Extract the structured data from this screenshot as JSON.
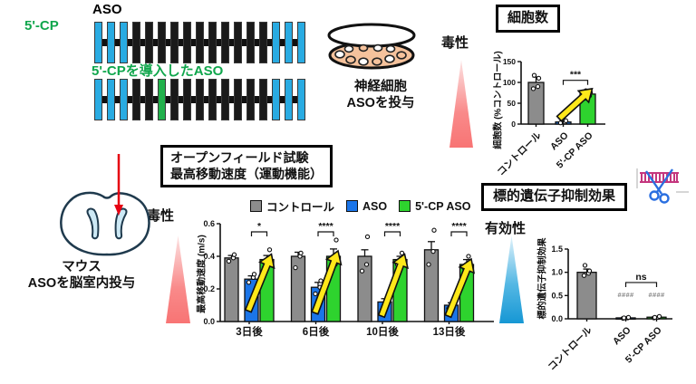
{
  "panels": {
    "structure": {
      "cp_label": "5'-CP",
      "row1_label": "ASO",
      "row2_label": "5'-CPを導入したASO",
      "label_color": "#10a64c",
      "palette": {
        "cyan": "#29abe2",
        "black": "#1a1a1a",
        "green": "#22b14c"
      },
      "row1": [
        "cyan",
        "cyan",
        "cyan",
        "black",
        "black",
        "black",
        "black",
        "black",
        "black",
        "black",
        "black",
        "black",
        "black",
        "black",
        "cyan",
        "cyan",
        "cyan"
      ],
      "row2": [
        "cyan",
        "cyan",
        "cyan",
        "black",
        "black",
        "green",
        "black",
        "black",
        "black",
        "black",
        "black",
        "black",
        "black",
        "black",
        "cyan",
        "cyan",
        "cyan"
      ]
    },
    "cell_assay": {
      "caption_line1": "神経細胞",
      "caption_line2": "ASOを投与",
      "toxicity_label": "毒性"
    },
    "mouse_assay": {
      "caption_line1": "マウス",
      "caption_line2": "ASOを脳室内投与",
      "toxicity_label": "毒性"
    },
    "suppression": {
      "efficacy_label": "有効性"
    }
  },
  "chart_data": [
    {
      "id": "cell_count",
      "type": "bar",
      "title": "細胞数",
      "ylabel": "細胞数 (%コントロール)",
      "ylim": [
        0,
        150
      ],
      "yticks": [
        "0",
        "50",
        "100",
        "150"
      ],
      "categories": [
        "コントロール",
        "ASO",
        "5'-CP ASO"
      ],
      "values": [
        100,
        5,
        72
      ],
      "errors": [
        13,
        2,
        6
      ],
      "dots": [
        [
          85,
          90,
          110,
          117
        ],
        [
          3,
          5,
          8
        ],
        [
          62,
          68,
          76,
          80
        ]
      ],
      "bar_colors": [
        "#8c8c8c",
        "#1b75e8",
        "#2ed32e"
      ],
      "significance": [
        {
          "bars": [
            1,
            2
          ],
          "label": "***",
          "y": 105
        }
      ],
      "arrows": [
        {
          "from": 1,
          "to": 2
        }
      ],
      "grid": false,
      "legend_position": "none"
    },
    {
      "id": "open_field",
      "type": "grouped_bar",
      "title_line1": "オープンフィールド試験",
      "title_line2": "最高移動速度（運動機能）",
      "ylabel": "最高移動速度 (m/s)",
      "ylim": [
        0,
        0.6
      ],
      "yticks": [
        "0.0",
        "0.2",
        "0.4",
        "0.6"
      ],
      "categories": [
        "3日後",
        "6日後",
        "10日後",
        "13日後"
      ],
      "series": [
        {
          "name": "コントロール",
          "color": "#8c8c8c",
          "values": [
            0.39,
            0.4,
            0.4,
            0.44
          ],
          "errors": [
            0.015,
            0.025,
            0.04,
            0.05
          ],
          "dots": [
            [
              0.37,
              0.39,
              0.41
            ],
            [
              0.33,
              0.4,
              0.42
            ],
            [
              0.31,
              0.35,
              0.52
            ],
            [
              0.35,
              0.43,
              0.56
            ]
          ]
        },
        {
          "name": "ASO",
          "color": "#1b75e8",
          "values": [
            0.26,
            0.21,
            0.12,
            0.1
          ],
          "errors": [
            0.02,
            0.03,
            0.02,
            0.015
          ],
          "dots": [
            [
              0.24,
              0.27,
              0.29
            ],
            [
              0.17,
              0.21,
              0.25
            ],
            [
              0.07,
              0.12,
              0.14
            ],
            [
              0.08,
              0.1,
              0.12
            ]
          ]
        },
        {
          "name": "5'-CP ASO",
          "color": "#2ed32e",
          "values": [
            0.38,
            0.4,
            0.38,
            0.35
          ],
          "errors": [
            0.025,
            0.045,
            0.02,
            0.03
          ],
          "dots": [
            [
              0.33,
              0.36,
              0.44
            ],
            [
              0.31,
              0.35,
              0.5
            ],
            [
              0.35,
              0.42
            ],
            [
              0.33,
              0.4
            ]
          ]
        }
      ],
      "significance": [
        {
          "group": 0,
          "series": [
            1,
            2
          ],
          "label": "*",
          "y": 0.55
        },
        {
          "group": 1,
          "series": [
            1,
            2
          ],
          "label": "****",
          "y": 0.55
        },
        {
          "group": 2,
          "series": [
            1,
            2
          ],
          "label": "****",
          "y": 0.55
        },
        {
          "group": 3,
          "series": [
            1,
            2
          ],
          "label": "****",
          "y": 0.55
        }
      ],
      "arrows": [
        {
          "group": 0,
          "from": 1,
          "to": 2
        },
        {
          "group": 1,
          "from": 1,
          "to": 2
        },
        {
          "group": 2,
          "from": 1,
          "to": 2
        },
        {
          "group": 3,
          "from": 1,
          "to": 2
        }
      ],
      "grid": false,
      "legend_position": "top"
    },
    {
      "id": "suppression",
      "type": "bar",
      "title": "標的遺伝子抑制効果",
      "ylabel": "標的遺伝子抑制効果",
      "ylim": [
        0,
        1.5
      ],
      "yticks": [
        "0.0",
        "0.5",
        "1.0",
        "1.5"
      ],
      "categories": [
        "コントロール",
        "ASO",
        "5'-CP ASO"
      ],
      "values": [
        1.0,
        0.02,
        0.035
      ],
      "errors": [
        0.07,
        0.01,
        0.01
      ],
      "dots": [
        [
          0.93,
          0.98,
          1.03,
          1.15
        ],
        [
          0.01,
          0.02,
          0.03,
          0.02
        ],
        [
          0.02,
          0.03,
          0.05,
          0.03
        ]
      ],
      "bar_colors": [
        "#8c8c8c",
        "#1b75e8",
        "#1faa1f"
      ],
      "significance": [
        {
          "bars": [
            1,
            2
          ],
          "label": "ns",
          "y": 0.78
        }
      ],
      "hash_marks": [
        {
          "bar": 1,
          "label": "####",
          "y": 0.47
        },
        {
          "bar": 2,
          "label": "####",
          "y": 0.47
        }
      ],
      "arrows": [],
      "grid": false,
      "legend_position": "none"
    }
  ]
}
